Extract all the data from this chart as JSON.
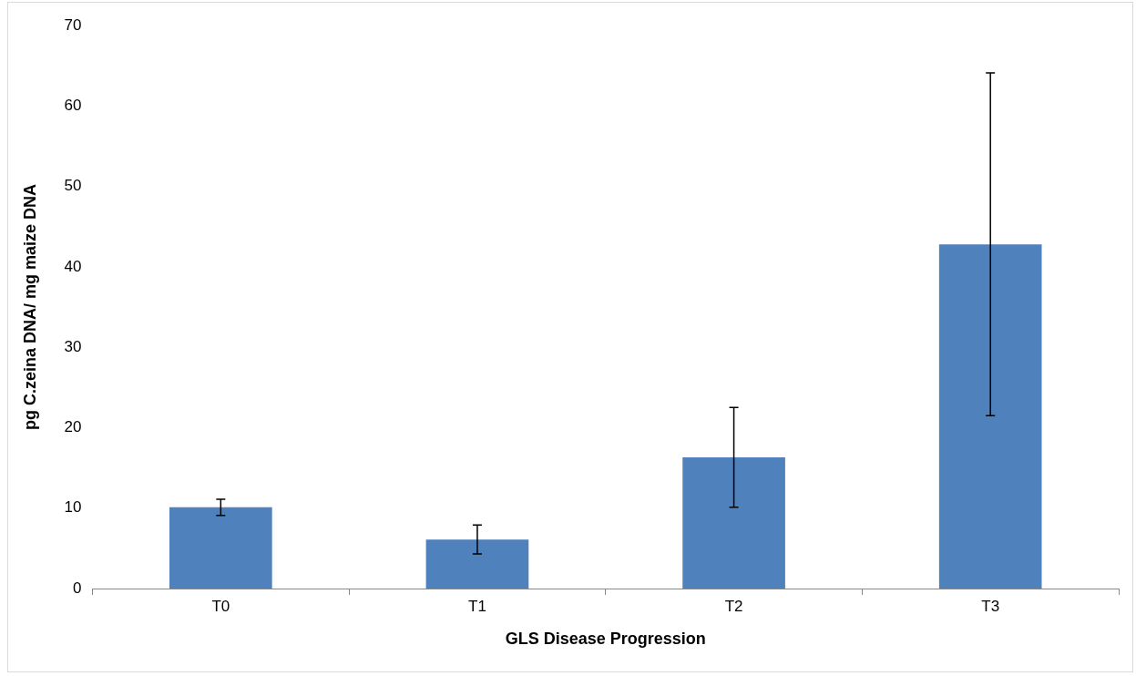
{
  "chart_data": {
    "type": "bar",
    "xlabel": "GLS Disease Progression",
    "ylabel": "pg C.zeina DNA/ mg maize DNA",
    "categories": [
      "T0",
      "T1",
      "T2",
      "T3"
    ],
    "values": [
      10.1,
      6.1,
      16.3,
      42.8
    ],
    "errors": [
      1.0,
      1.8,
      6.2,
      21.3
    ],
    "color": "#4f81bd",
    "ylim": [
      0,
      70
    ],
    "yticks": [
      0,
      10,
      20,
      30,
      40,
      50,
      60,
      70
    ],
    "grid": false,
    "legend": false
  }
}
